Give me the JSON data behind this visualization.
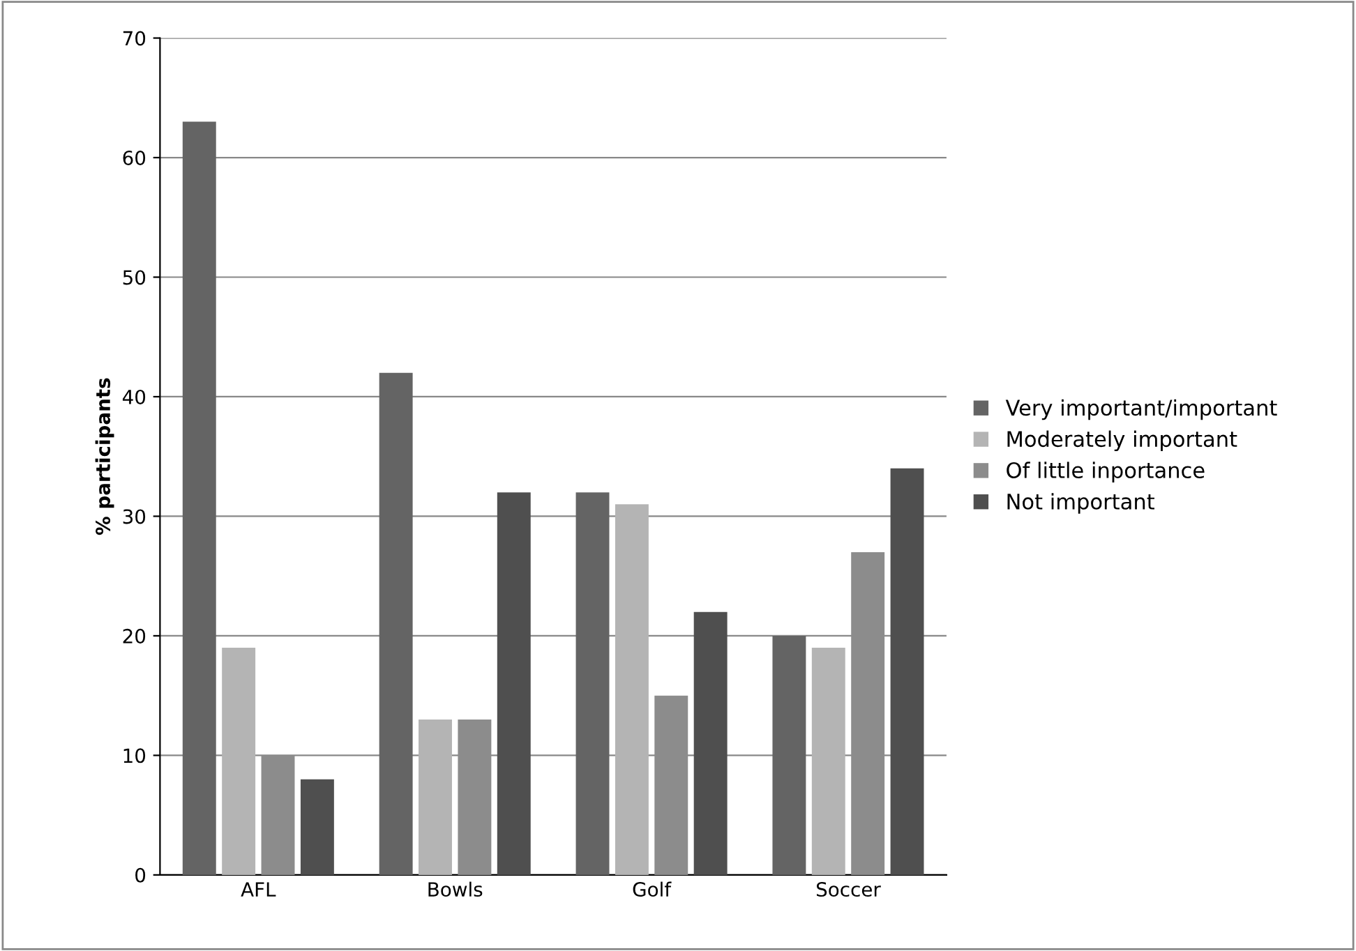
{
  "chart_data": {
    "type": "bar",
    "ylabel": "% participants",
    "categories": [
      "AFL",
      "Bowls",
      "Golf",
      "Soccer"
    ],
    "series": [
      {
        "name": "Very important/important",
        "color": "#646464",
        "values": [
          63,
          42,
          32,
          20
        ]
      },
      {
        "name": "Moderately important",
        "color": "#b4b4b4",
        "values": [
          19,
          13,
          31,
          19
        ]
      },
      {
        "name": "Of little inportance",
        "color": "#8c8c8c",
        "values": [
          10,
          13,
          15,
          27
        ]
      },
      {
        "name": "Not important",
        "color": "#4f4f4f",
        "values": [
          8,
          32,
          22,
          34
        ]
      }
    ],
    "ylim": [
      0,
      70
    ],
    "yticks": [
      0,
      10,
      20,
      30,
      40,
      50,
      60,
      70
    ],
    "grid": "y",
    "legend": "right"
  }
}
